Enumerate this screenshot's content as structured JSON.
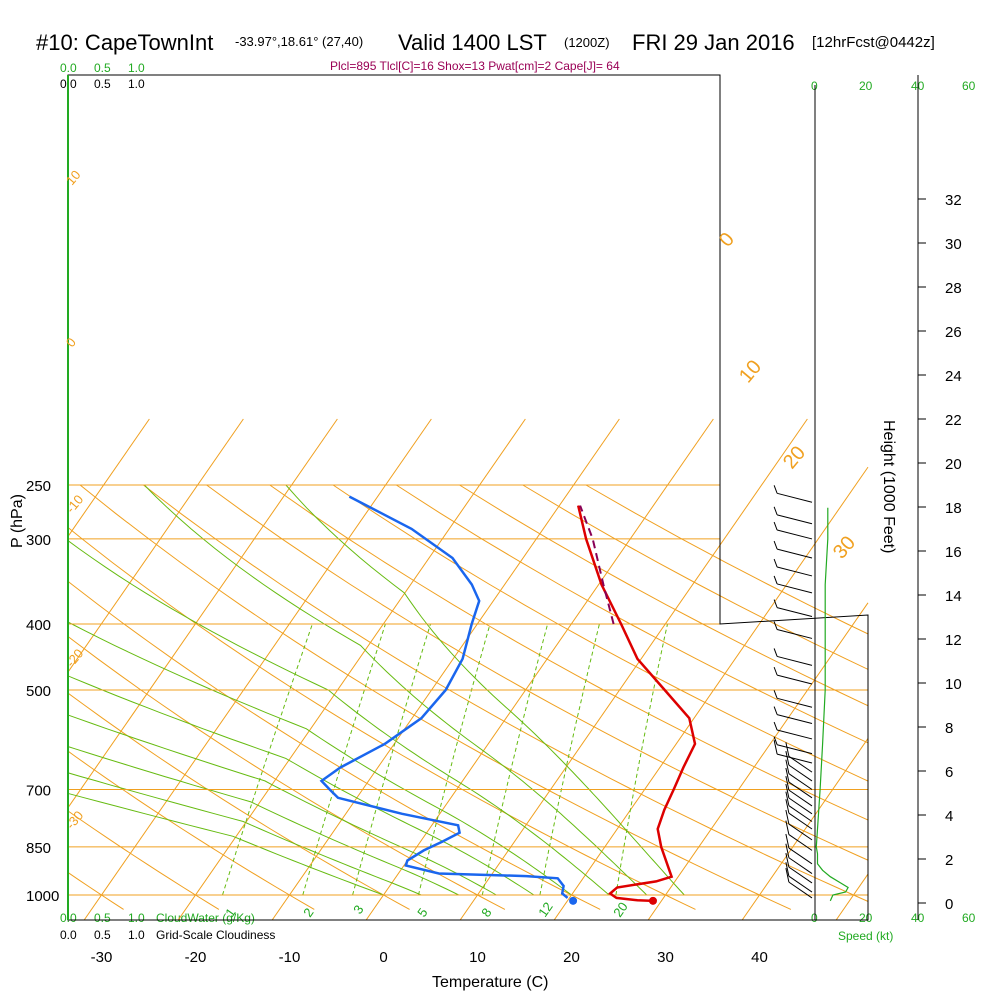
{
  "header": {
    "station": "#10: CapeTownInt",
    "coords": "-33.97°,18.61° (27,40)",
    "valid": "Valid 1400 LST",
    "utc": "(1200Z)",
    "date": "FRI 29 Jan 2016",
    "forecast": "[12hrFcst@0442z]"
  },
  "indices": "Plcl=895 Tlcl[C]=16 Shox=13 Pwat[cm]=2 Cape[J]= 64",
  "colors": {
    "temp": "#dd0000",
    "dew": "#1a66ee",
    "parcel": "#880055",
    "isotherm": "#f0a020",
    "mixing": "#66bb11",
    "wind": "#22aa22"
  },
  "legend": {
    "cloudwater_scale": [
      "0.0",
      "0.5",
      "1.0"
    ],
    "cloudwater_label": "CloudWater (g/Kg)",
    "cloudiness_scale": [
      "0.0",
      "0.5",
      "1.0"
    ],
    "cloudiness_label": "Grid-Scale Cloudiness"
  },
  "speed_axis": {
    "label": "Speed (kt)",
    "top_ticks": [
      "0",
      "20",
      "40",
      "60"
    ],
    "bottom_ticks": [
      "0",
      "20",
      "40",
      "60"
    ]
  },
  "chart_data": {
    "type": "line",
    "title": "Skew-T sounding",
    "xlabel": "Temperature (C)",
    "ylabel": "P (hPa)",
    "y2label": "Height (1000 Feet)",
    "x_ticks": [
      -30,
      -20,
      -10,
      0,
      10,
      20,
      30,
      40
    ],
    "p_ticks": [
      250,
      300,
      400,
      500,
      700,
      850,
      1000
    ],
    "height_ticks": [
      0,
      2,
      4,
      6,
      8,
      10,
      12,
      14,
      16,
      18,
      20,
      22,
      24,
      26,
      28,
      30,
      32
    ],
    "isotherm_labels": [
      "10",
      "0",
      "-10",
      "-20",
      "-30",
      "0",
      "10",
      "20",
      "30"
    ],
    "mixing_labels": [
      "1",
      "2",
      "3",
      "5",
      "8",
      "12",
      "20"
    ],
    "series": [
      {
        "name": "temperature",
        "points": [
          [
            1020,
            29.1
          ],
          [
            1018,
            27.4
          ],
          [
            1010,
            25.0
          ],
          [
            995,
            24.0
          ],
          [
            975,
            24.3
          ],
          [
            955,
            28.0
          ],
          [
            940,
            29.3
          ],
          [
            850,
            26.0
          ],
          [
            800,
            24.3
          ],
          [
            750,
            23.6
          ],
          [
            700,
            23.1
          ],
          [
            650,
            22.5
          ],
          [
            600,
            22.0
          ],
          [
            550,
            19.5
          ],
          [
            500,
            14.8
          ],
          [
            450,
            9.6
          ],
          [
            400,
            5.3
          ],
          [
            350,
            0.3
          ],
          [
            300,
            -4.7
          ],
          [
            268,
            -8.0
          ]
        ]
      },
      {
        "name": "dewpoint",
        "points": [
          [
            1010,
            19.8
          ],
          [
            995,
            18.9
          ],
          [
            970,
            18.5
          ],
          [
            945,
            17.3
          ],
          [
            938,
            13.8
          ],
          [
            930,
            4.3
          ],
          [
            905,
            0.2
          ],
          [
            890,
            0.0
          ],
          [
            860,
            1.0
          ],
          [
            835,
            2.3
          ],
          [
            810,
            3.5
          ],
          [
            790,
            2.8
          ],
          [
            760,
            -4.0
          ],
          [
            720,
            -12.0
          ],
          [
            700,
            -13.5
          ],
          [
            680,
            -15.0
          ],
          [
            650,
            -14.0
          ],
          [
            600,
            -11.0
          ],
          [
            550,
            -9.0
          ],
          [
            500,
            -8.5
          ],
          [
            450,
            -9.0
          ],
          [
            400,
            -10.6
          ],
          [
            370,
            -11.5
          ],
          [
            350,
            -13.5
          ],
          [
            320,
            -17.5
          ],
          [
            290,
            -24.0
          ],
          [
            260,
            -33.0
          ]
        ]
      },
      {
        "name": "parcel",
        "points": [
          [
            400,
            4.5
          ],
          [
            350,
            0.5
          ],
          [
            300,
            -4.0
          ],
          [
            268,
            -7.8
          ]
        ]
      }
    ],
    "surface_points": {
      "temperature": 29.1,
      "dewpoint": 20.6,
      "pressure": 1020
    },
    "wind_speed_profile_kt": [
      [
        1020,
        6
      ],
      [
        1000,
        7
      ],
      [
        990,
        12
      ],
      [
        975,
        13
      ],
      [
        960,
        10
      ],
      [
        940,
        6
      ],
      [
        920,
        3
      ],
      [
        900,
        1
      ],
      [
        870,
        1
      ],
      [
        850,
        0.5
      ],
      [
        800,
        1
      ],
      [
        700,
        2
      ],
      [
        600,
        3
      ],
      [
        500,
        4
      ],
      [
        400,
        4
      ],
      [
        350,
        4
      ],
      [
        300,
        5
      ],
      [
        270,
        5
      ]
    ],
    "wind_barbs_kt": [
      [
        1010,
        10
      ],
      [
        990,
        10
      ],
      [
        960,
        10
      ],
      [
        930,
        10
      ],
      [
        900,
        10
      ],
      [
        860,
        10
      ],
      [
        830,
        10
      ],
      [
        800,
        10
      ],
      [
        780,
        10
      ],
      [
        760,
        10
      ],
      [
        740,
        10
      ],
      [
        720,
        10
      ],
      [
        700,
        10
      ],
      [
        680,
        10
      ],
      [
        660,
        10
      ],
      [
        640,
        10
      ],
      [
        620,
        5
      ],
      [
        590,
        5
      ],
      [
        560,
        5
      ],
      [
        530,
        5
      ],
      [
        490,
        5
      ],
      [
        460,
        5
      ],
      [
        420,
        5
      ],
      [
        390,
        5
      ],
      [
        360,
        5
      ],
      [
        340,
        5
      ],
      [
        320,
        5
      ],
      [
        300,
        5
      ],
      [
        285,
        5
      ],
      [
        265,
        5
      ]
    ]
  }
}
